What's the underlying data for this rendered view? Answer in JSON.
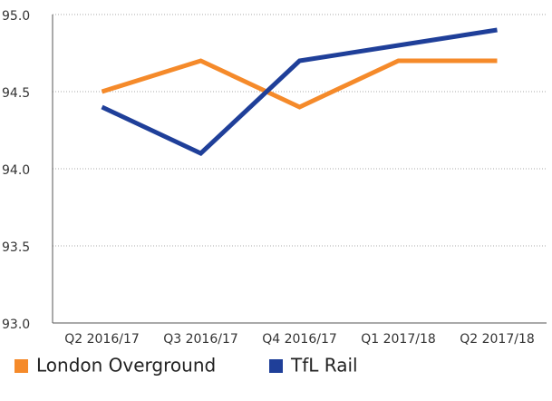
{
  "chart_data": {
    "type": "line",
    "categories": [
      "Q2 2016/17",
      "Q3 2016/17",
      "Q4 2016/17",
      "Q1 2017/18",
      "Q2 2017/18"
    ],
    "series": [
      {
        "name": "London Overground",
        "color": "#f58a2a",
        "values": [
          94.5,
          94.7,
          94.4,
          94.7,
          94.7
        ]
      },
      {
        "name": "TfL Rail",
        "color": "#1f3f99",
        "values": [
          94.4,
          94.1,
          94.7,
          94.8,
          94.9
        ]
      }
    ],
    "ylim": [
      93.0,
      95.0
    ],
    "yticks": [
      {
        "value": 93.0,
        "label": "93.0"
      },
      {
        "value": 93.5,
        "label": "93.5"
      },
      {
        "value": 94.0,
        "label": "94.0"
      },
      {
        "value": 94.5,
        "label": "94.5"
      },
      {
        "value": 95.0,
        "label": "95.0"
      }
    ],
    "grid": true
  }
}
